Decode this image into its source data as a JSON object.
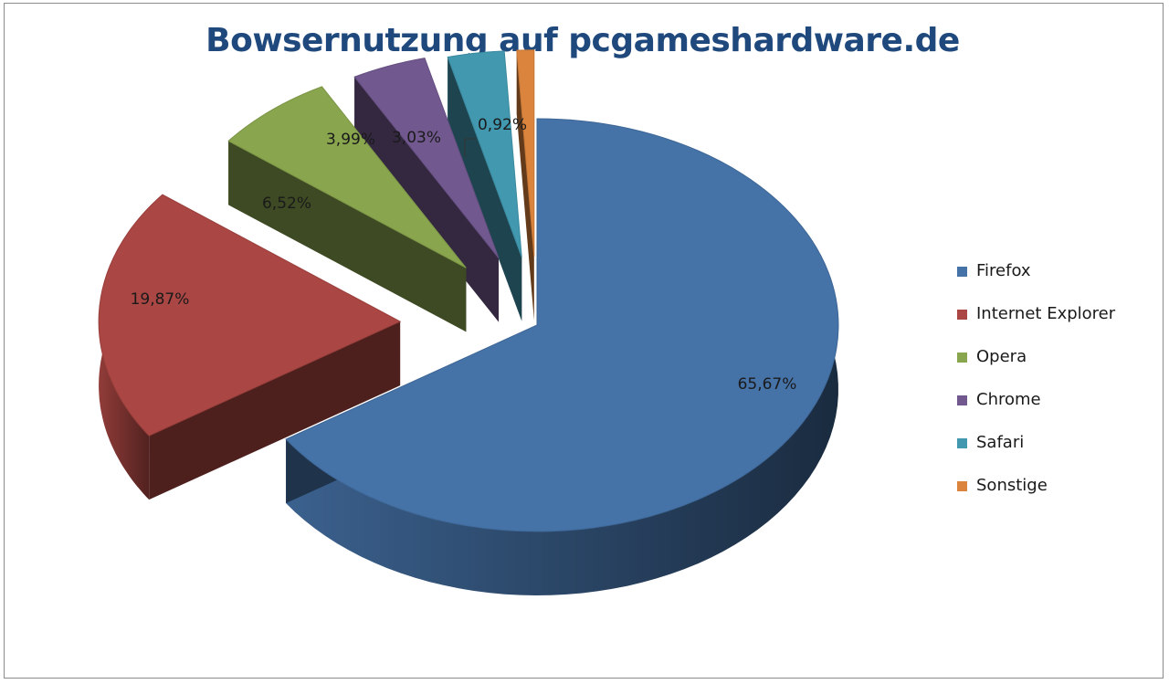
{
  "chart_data": {
    "type": "pie",
    "title": "Bowsernutzung auf pcgameshardware.de",
    "categories": [
      "Firefox",
      "Internet Explorer",
      "Opera",
      "Chrome",
      "Safari",
      "Sonstige"
    ],
    "values": [
      65.67,
      19.87,
      6.52,
      3.99,
      3.03,
      0.92
    ],
    "data_labels": [
      "65,67%",
      "19,87%",
      "6,52%",
      "3,99%",
      "3,03%",
      "0,92%"
    ],
    "colors": [
      "#4572a7",
      "#aa4643",
      "#89a54e",
      "#71588f",
      "#4198af",
      "#db843d"
    ],
    "legend_position": "right",
    "exploded": true,
    "three_d": true
  }
}
